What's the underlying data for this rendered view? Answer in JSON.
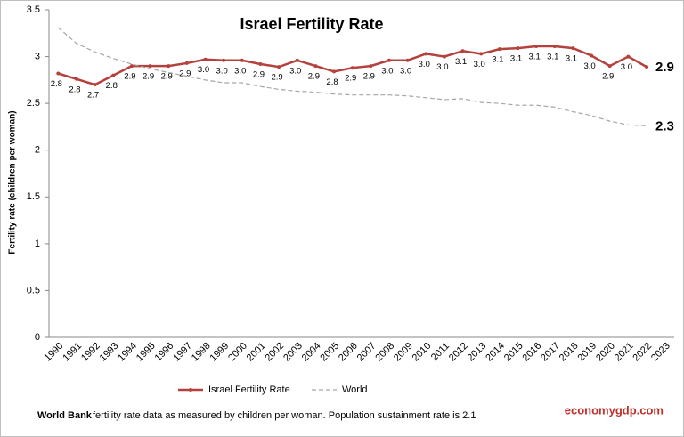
{
  "chart_data": {
    "type": "line",
    "title": "Israel Fertility Rate",
    "ylabel": "Fertility rate (children per woman)",
    "categories": [
      "1990",
      "1991",
      "1992",
      "1993",
      "1994",
      "1995",
      "1996",
      "1997",
      "1998",
      "1999",
      "2000",
      "2001",
      "2002",
      "2003",
      "2004",
      "2005",
      "2006",
      "2007",
      "2008",
      "2009",
      "2010",
      "2011",
      "2012",
      "2013",
      "2014",
      "2015",
      "2016",
      "2017",
      "2018",
      "2019",
      "2020",
      "2021",
      "2022",
      "2023"
    ],
    "series": [
      {
        "name": "Israel Fertility Rate",
        "color": "#b5413d",
        "style": "solid",
        "values": [
          2.82,
          2.76,
          2.7,
          2.8,
          2.9,
          2.9,
          2.9,
          2.93,
          2.97,
          2.96,
          2.96,
          2.92,
          2.89,
          2.96,
          2.9,
          2.84,
          2.88,
          2.9,
          2.96,
          2.96,
          3.03,
          3.0,
          3.06,
          3.03,
          3.08,
          3.09,
          3.11,
          3.11,
          3.09,
          3.01,
          2.9,
          3.0,
          2.89,
          null
        ],
        "value_labels": [
          "2.8",
          "2.8",
          "2.7",
          "2.8",
          "2.9",
          "2.9",
          "2.9",
          "2.9",
          "3.0",
          "3.0",
          "3.0",
          "2.9",
          "2.9",
          "3.0",
          "2.9",
          "2.8",
          "2.9",
          "2.9",
          "3.0",
          "3.0",
          "3.0",
          "3.0",
          "3.1",
          "3.0",
          "3.1",
          "3.1",
          "3.1",
          "3.1",
          "3.1",
          "3.0",
          "2.9",
          "3.0",
          "2.9",
          null
        ]
      },
      {
        "name": "World",
        "color": "#a6a6a6",
        "style": "dashed",
        "values": [
          3.31,
          3.14,
          3.05,
          2.98,
          2.92,
          2.87,
          2.83,
          2.79,
          2.75,
          2.72,
          2.72,
          2.68,
          2.65,
          2.63,
          2.62,
          2.6,
          2.59,
          2.59,
          2.59,
          2.58,
          2.56,
          2.54,
          2.55,
          2.51,
          2.5,
          2.48,
          2.48,
          2.46,
          2.41,
          2.37,
          2.31,
          2.27,
          2.26,
          null
        ],
        "value_labels": [
          null,
          null,
          null,
          null,
          null,
          null,
          null,
          null,
          null,
          null,
          null,
          null,
          null,
          null,
          null,
          null,
          null,
          null,
          null,
          null,
          null,
          null,
          null,
          null,
          null,
          null,
          null,
          null,
          null,
          null,
          null,
          null,
          "2.3",
          null
        ]
      }
    ],
    "ylim": [
      0,
      3.5
    ],
    "yticks": [
      0,
      0.5,
      1,
      1.5,
      2,
      2.5,
      3,
      3.5
    ],
    "grid": false,
    "legend": "bottom",
    "footnote_source": "World Bank",
    "footnote_text": "fertility rate data as measured by children per woman.  Population sustainment rate is 2.1",
    "brand": "economygdp.com"
  }
}
